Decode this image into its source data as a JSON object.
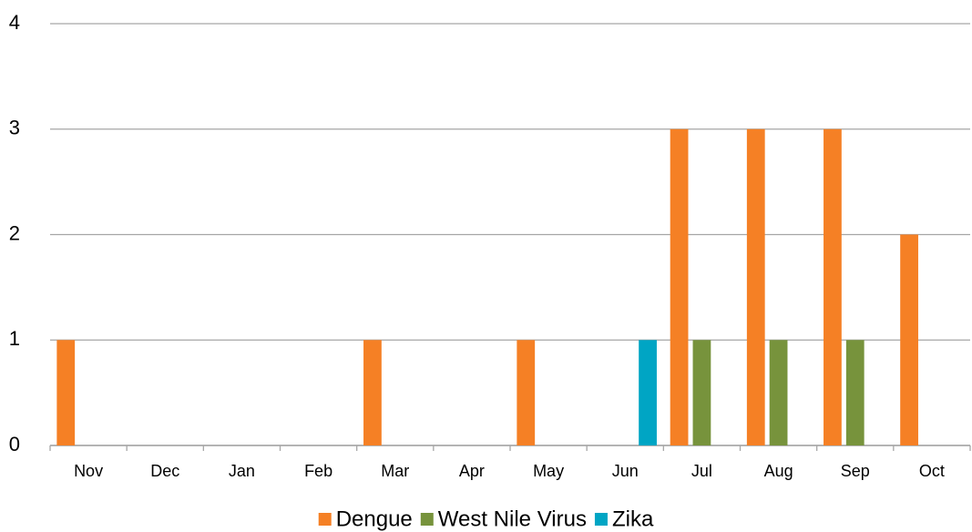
{
  "chart_data": {
    "type": "bar",
    "categories": [
      "Nov",
      "Dec",
      "Jan",
      "Feb",
      "Mar",
      "Apr",
      "May",
      "Jun",
      "Jul",
      "Aug",
      "Sep",
      "Oct"
    ],
    "series": [
      {
        "name": "Dengue",
        "color": "#f58025",
        "values": [
          1,
          0,
          0,
          0,
          1,
          0,
          1,
          0,
          3,
          3,
          3,
          2
        ]
      },
      {
        "name": "West Nile Virus",
        "color": "#77933c",
        "values": [
          0,
          0,
          0,
          0,
          0,
          0,
          0,
          0,
          1,
          1,
          1,
          0
        ]
      },
      {
        "name": "Zika",
        "color": "#00a5c4",
        "values": [
          0,
          0,
          0,
          0,
          0,
          0,
          0,
          1,
          0,
          0,
          0,
          0
        ]
      }
    ],
    "ylim": [
      0,
      4
    ],
    "yticks": [
      0,
      1,
      2,
      3,
      4
    ],
    "grid": true,
    "legend": "bottom"
  }
}
